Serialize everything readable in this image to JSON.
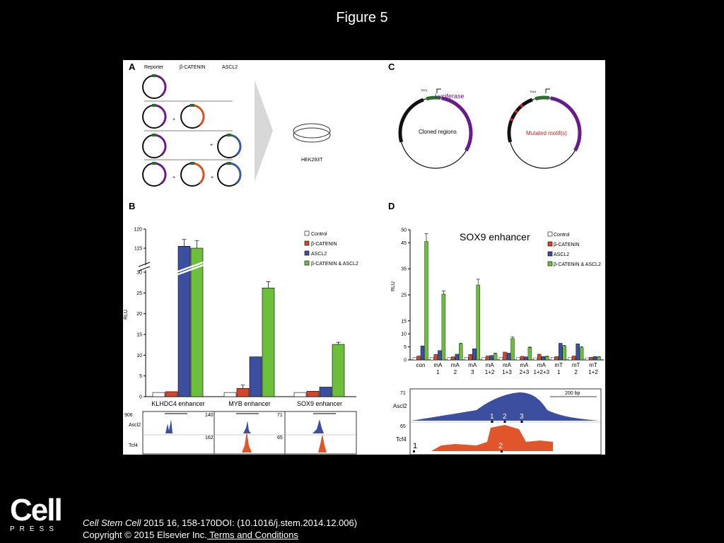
{
  "figure_title": "Figure 5",
  "citation": {
    "journal": "Cell Stem Cell",
    "rest": " 2015 16, 158-170DOI: (10.1016/j.stem.2014.12.006)",
    "copyright": "Copyright © 2015 Elsevier Inc.",
    "terms_link": " Terms and Conditions"
  },
  "logo": {
    "word": "Cell",
    "sub": "PRESS"
  },
  "panel_letters": {
    "a": "A",
    "b": "B",
    "c": "C",
    "d": "D"
  },
  "panel_a": {
    "col_labels": [
      "Reporter",
      "β-CATENIN",
      "ASCL2"
    ],
    "plus": "+",
    "cell_line": "HEK293T",
    "colors": {
      "reporter": "#6a1b8a",
      "catenin": "#d4521f",
      "ascl2": "#3a5aa0"
    }
  },
  "panel_c": {
    "tata": "TATA",
    "luciferase": "Luciferase",
    "cloned": "Cloned regions",
    "mutated": "Mutated motif(s)",
    "colors": {
      "luciferase": "#6a1b8a",
      "mutated": "#cc2222",
      "promoter": "#2e6b2e"
    }
  },
  "chart_data": [
    {
      "type": "bar",
      "panel": "B",
      "ylabel": "RLU",
      "ylim": [
        0,
        120
      ],
      "axis_break": [
        30,
        115
      ],
      "yticks": [
        0,
        5,
        10,
        15,
        20,
        25,
        30,
        115,
        120
      ],
      "categories": [
        "KLHDC4 enhancer",
        "MYB enhancer",
        "SOX9 enhancer"
      ],
      "series": [
        {
          "name": "Control",
          "color": "#ffffff",
          "values": [
            1.0,
            1.0,
            1.0
          ],
          "errors": [
            0,
            0,
            0
          ]
        },
        {
          "name": "β-CATENIN",
          "color": "#d4452a",
          "values": [
            1.2,
            2.0,
            1.3
          ],
          "errors": [
            0,
            0.8,
            0
          ]
        },
        {
          "name": "ASCL2",
          "color": "#3b4ea0",
          "values": [
            115.5,
            9.6,
            2.3
          ],
          "errors": [
            1.8,
            0,
            0
          ]
        },
        {
          "name": "β-CATENIN & ASCL2",
          "color": "#6bbf3a",
          "values": [
            115.0,
            26.2,
            12.6
          ],
          "errors": [
            2.0,
            1.5,
            0.5
          ]
        }
      ],
      "tracks": {
        "rows": [
          "Ascl2",
          "Tcf4"
        ],
        "scales": [
          [
            "906",
            "140",
            "71"
          ],
          [
            "162",
            "65"
          ]
        ]
      }
    },
    {
      "type": "bar",
      "panel": "D",
      "title": "SOX9 enhancer",
      "ylabel": "RLU",
      "ylim": [
        0,
        50
      ],
      "yticks": [
        0,
        5,
        10,
        15,
        25,
        35,
        45,
        50
      ],
      "categories": [
        [
          "con",
          ""
        ],
        [
          "mA",
          "1"
        ],
        [
          "mA",
          "2"
        ],
        [
          "mA",
          "3"
        ],
        [
          "mA",
          "1+2"
        ],
        [
          "mA",
          "1+3"
        ],
        [
          "mA",
          "2+3"
        ],
        [
          "mA",
          "1+2+3"
        ],
        [
          "mT",
          "1"
        ],
        [
          "mT",
          "2"
        ],
        [
          "mT",
          "1+2"
        ]
      ],
      "series": [
        {
          "name": "Control",
          "color": "#ffffff",
          "values": [
            1.0,
            1.0,
            0.9,
            1.0,
            0.9,
            1.0,
            0.9,
            0.8,
            1.0,
            1.0,
            0.8
          ]
        },
        {
          "name": "β-CATENIN",
          "color": "#d4452a",
          "values": [
            1.5,
            2.1,
            1.2,
            2.1,
            1.5,
            3.0,
            1.4,
            2.2,
            1.3,
            1.5,
            1.0
          ]
        },
        {
          "name": "ASCL2",
          "color": "#3b4ea0",
          "values": [
            5.4,
            3.6,
            2.2,
            4.3,
            1.7,
            2.6,
            1.2,
            1.3,
            6.4,
            6.2,
            1.3
          ]
        },
        {
          "name": "β-CATENIN & ASCL2",
          "color": "#6bbf3a",
          "values": [
            45.5,
            25.3,
            6.1,
            28.8,
            2.3,
            8.2,
            4.7,
            1.3,
            5.2,
            4.7,
            1.1
          ]
        }
      ],
      "errors_green": [
        3.0,
        1.2,
        0.3,
        2.2,
        0.3,
        0.7,
        0.2,
        0.1,
        0.4,
        0.4,
        0.1
      ],
      "track": {
        "rows": [
          "Ascl2",
          "Tcf4"
        ],
        "scales": [
          "71",
          "65"
        ],
        "scale_bar": "200 bp",
        "motif_labels": [
          "1",
          "2",
          "3"
        ],
        "tcf_motif_labels": [
          "1",
          "2"
        ]
      }
    }
  ]
}
